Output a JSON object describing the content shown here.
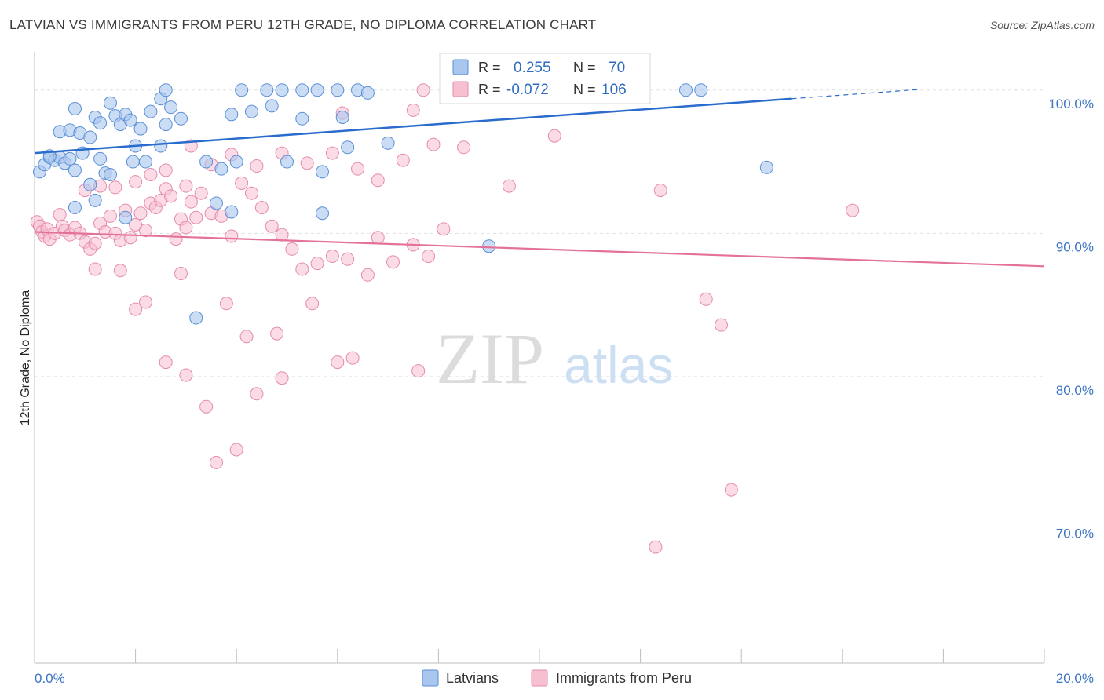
{
  "title": "LATVIAN VS IMMIGRANTS FROM PERU 12TH GRADE, NO DIPLOMA CORRELATION CHART",
  "source": "Source: ZipAtlas.com",
  "watermark": {
    "zip": "ZIP",
    "atlas": "atlas"
  },
  "colors": {
    "latvian_fill": "#a9c6ee",
    "latvian_stroke": "#5a8fd6",
    "latvian_line": "#2a6ccd",
    "peru_fill": "#f7c0d1",
    "peru_stroke": "#e58bab",
    "peru_line": "#e4719b",
    "tick_text": "#3b74c4",
    "grid": "#e1e1e1"
  },
  "legend": {
    "rows": [
      {
        "r_label": "R =",
        "r_value": "0.255",
        "n_label": "N =",
        "n_value": "70"
      },
      {
        "r_label": "R =",
        "r_value": "-0.072",
        "n_label": "N =",
        "n_value": "106"
      }
    ]
  },
  "chart_data": {
    "type": "scatter",
    "xlabel": "",
    "ylabel": "12th Grade, No Diploma",
    "xlim": [
      0,
      20
    ],
    "ylim": [
      60,
      103
    ],
    "x_tick_labels": [
      "0.0%",
      "20.0%"
    ],
    "y_ticks": [
      70,
      80,
      90,
      100
    ],
    "y_tick_labels": [
      "70.0%",
      "80.0%",
      "90.0%",
      "100.0%"
    ],
    "grid": true,
    "legend_position": "bottom",
    "series": [
      {
        "name": "Latvians",
        "r": 0.255,
        "n": 70,
        "trend": {
          "x0": 0,
          "y0": 95.6,
          "x1": 15,
          "y1": 99.4,
          "dashed_to_x": 17.5
        },
        "points": [
          [
            0.1,
            94.3
          ],
          [
            0.2,
            94.8
          ],
          [
            0.3,
            95.3
          ],
          [
            0.4,
            95.1
          ],
          [
            0.5,
            95.3
          ],
          [
            0.6,
            94.9
          ],
          [
            0.7,
            95.2
          ],
          [
            0.8,
            94.4
          ],
          [
            0.5,
            97.1
          ],
          [
            0.7,
            97.2
          ],
          [
            0.9,
            97.0
          ],
          [
            1.1,
            96.7
          ],
          [
            0.8,
            98.7
          ],
          [
            1.2,
            98.1
          ],
          [
            1.3,
            97.7
          ],
          [
            1.5,
            99.1
          ],
          [
            1.6,
            98.2
          ],
          [
            1.7,
            97.6
          ],
          [
            1.8,
            98.3
          ],
          [
            1.9,
            97.9
          ],
          [
            2.0,
            96.1
          ],
          [
            2.1,
            97.3
          ],
          [
            2.3,
            98.5
          ],
          [
            2.5,
            99.4
          ],
          [
            2.7,
            98.8
          ],
          [
            2.9,
            98.0
          ],
          [
            2.6,
            97.6
          ],
          [
            2.5,
            96.1
          ],
          [
            1.3,
            95.2
          ],
          [
            1.1,
            93.4
          ],
          [
            1.2,
            92.3
          ],
          [
            0.8,
            91.8
          ],
          [
            1.4,
            94.2
          ],
          [
            1.8,
            91.1
          ],
          [
            2.6,
            100.0
          ],
          [
            4.1,
            100.0
          ],
          [
            4.6,
            100.0
          ],
          [
            4.9,
            100.0
          ],
          [
            5.3,
            100.0
          ],
          [
            5.6,
            100.0
          ],
          [
            6.0,
            100.0
          ],
          [
            6.4,
            100.0
          ],
          [
            8.2,
            100.0
          ],
          [
            10.5,
            100.0
          ],
          [
            12.9,
            100.0
          ],
          [
            13.2,
            100.0
          ],
          [
            3.9,
            98.3
          ],
          [
            4.3,
            98.5
          ],
          [
            4.7,
            98.9
          ],
          [
            5.3,
            98.0
          ],
          [
            6.1,
            98.1
          ],
          [
            6.6,
            99.8
          ],
          [
            7.0,
            96.3
          ],
          [
            3.7,
            94.5
          ],
          [
            5.7,
            94.3
          ],
          [
            3.6,
            92.1
          ],
          [
            3.9,
            91.5
          ],
          [
            5.7,
            91.4
          ],
          [
            9.0,
            89.1
          ],
          [
            3.2,
            84.1
          ],
          [
            14.5,
            94.6
          ],
          [
            0.3,
            95.4
          ],
          [
            1.5,
            94.1
          ],
          [
            2.2,
            95.0
          ],
          [
            0.95,
            95.6
          ],
          [
            1.95,
            95.0
          ],
          [
            3.4,
            95.0
          ],
          [
            4.0,
            95.0
          ],
          [
            5.0,
            95.0
          ],
          [
            6.2,
            96.0
          ]
        ]
      },
      {
        "name": "Immigrants from Peru",
        "r": -0.072,
        "n": 106,
        "trend": {
          "x0": 0,
          "y0": 90.1,
          "x1": 20,
          "y1": 87.7
        },
        "points": [
          [
            0.05,
            90.8
          ],
          [
            0.1,
            90.5
          ],
          [
            0.15,
            90.1
          ],
          [
            0.2,
            89.8
          ],
          [
            0.25,
            90.3
          ],
          [
            0.3,
            89.6
          ],
          [
            0.4,
            90.0
          ],
          [
            0.5,
            91.3
          ],
          [
            0.55,
            90.5
          ],
          [
            0.6,
            90.2
          ],
          [
            0.7,
            89.9
          ],
          [
            0.8,
            90.4
          ],
          [
            0.9,
            90.0
          ],
          [
            1.0,
            89.4
          ],
          [
            1.1,
            88.9
          ],
          [
            1.2,
            89.3
          ],
          [
            1.3,
            90.7
          ],
          [
            1.4,
            90.1
          ],
          [
            1.5,
            91.2
          ],
          [
            1.6,
            90.0
          ],
          [
            1.7,
            89.5
          ],
          [
            1.8,
            91.6
          ],
          [
            1.9,
            89.7
          ],
          [
            2.0,
            90.6
          ],
          [
            2.1,
            91.4
          ],
          [
            2.2,
            90.2
          ],
          [
            2.3,
            92.1
          ],
          [
            2.4,
            91.8
          ],
          [
            2.5,
            92.3
          ],
          [
            2.6,
            93.1
          ],
          [
            2.7,
            92.6
          ],
          [
            2.8,
            89.6
          ],
          [
            2.9,
            91.0
          ],
          [
            3.0,
            90.4
          ],
          [
            3.1,
            92.2
          ],
          [
            3.2,
            91.1
          ],
          [
            3.3,
            92.8
          ],
          [
            3.5,
            91.4
          ],
          [
            3.7,
            91.2
          ],
          [
            3.9,
            89.8
          ],
          [
            4.1,
            93.5
          ],
          [
            4.3,
            92.8
          ],
          [
            4.5,
            91.8
          ],
          [
            4.7,
            90.5
          ],
          [
            4.9,
            89.9
          ],
          [
            5.1,
            88.9
          ],
          [
            5.3,
            87.5
          ],
          [
            5.6,
            87.9
          ],
          [
            5.9,
            88.4
          ],
          [
            6.2,
            88.2
          ],
          [
            6.6,
            87.1
          ],
          [
            6.8,
            89.7
          ],
          [
            7.1,
            88.0
          ],
          [
            7.5,
            89.2
          ],
          [
            7.8,
            88.4
          ],
          [
            8.1,
            90.3
          ],
          [
            1.0,
            93.0
          ],
          [
            1.3,
            93.3
          ],
          [
            1.6,
            93.2
          ],
          [
            2.0,
            93.6
          ],
          [
            2.3,
            94.1
          ],
          [
            2.6,
            94.4
          ],
          [
            3.0,
            93.3
          ],
          [
            3.5,
            94.8
          ],
          [
            3.9,
            95.5
          ],
          [
            4.4,
            94.7
          ],
          [
            4.9,
            95.6
          ],
          [
            5.4,
            94.9
          ],
          [
            5.9,
            95.6
          ],
          [
            6.4,
            94.5
          ],
          [
            6.8,
            93.7
          ],
          [
            7.3,
            95.1
          ],
          [
            7.9,
            96.2
          ],
          [
            8.5,
            96.0
          ],
          [
            9.4,
            93.3
          ],
          [
            10.3,
            96.8
          ],
          [
            12.4,
            93.0
          ],
          [
            16.2,
            91.6
          ],
          [
            3.1,
            96.1
          ],
          [
            6.1,
            98.4
          ],
          [
            7.5,
            98.6
          ],
          [
            7.7,
            100.0
          ],
          [
            9.6,
            100.0
          ],
          [
            2.2,
            85.2
          ],
          [
            2.0,
            84.7
          ],
          [
            3.8,
            85.1
          ],
          [
            5.5,
            85.1
          ],
          [
            13.3,
            85.4
          ],
          [
            13.6,
            83.6
          ],
          [
            4.2,
            82.8
          ],
          [
            4.8,
            83.0
          ],
          [
            6.3,
            81.3
          ],
          [
            6.0,
            81.0
          ],
          [
            2.6,
            81.0
          ],
          [
            3.0,
            80.1
          ],
          [
            4.4,
            78.8
          ],
          [
            3.4,
            77.9
          ],
          [
            4.9,
            79.9
          ],
          [
            7.6,
            80.4
          ],
          [
            3.6,
            74.0
          ],
          [
            4.0,
            74.9
          ],
          [
            13.8,
            72.1
          ],
          [
            12.3,
            68.1
          ],
          [
            1.7,
            87.4
          ],
          [
            1.2,
            87.5
          ],
          [
            2.9,
            87.2
          ]
        ]
      }
    ]
  },
  "bottom_legend": {
    "items": [
      "Latvians",
      "Immigrants from Peru"
    ]
  }
}
